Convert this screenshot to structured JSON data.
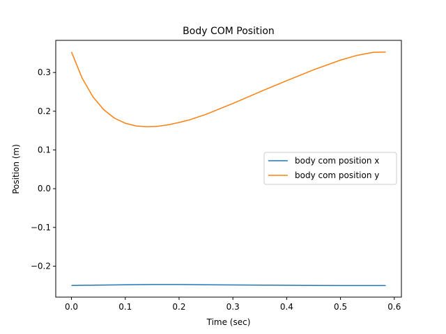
{
  "chart_data": {
    "type": "line",
    "title": "Body COM Position",
    "xlabel": "Time (sec)",
    "ylabel": "Position (m)",
    "xlim": [
      -0.0292,
      0.6132
    ],
    "ylim": [
      -0.28,
      0.383
    ],
    "xticks": [
      {
        "value": 0.0,
        "label": "0.0"
      },
      {
        "value": 0.1,
        "label": "0.1"
      },
      {
        "value": 0.2,
        "label": "0.2"
      },
      {
        "value": 0.3,
        "label": "0.3"
      },
      {
        "value": 0.4,
        "label": "0.4"
      },
      {
        "value": 0.5,
        "label": "0.5"
      },
      {
        "value": 0.6,
        "label": "0.6"
      }
    ],
    "yticks": [
      {
        "value": -0.2,
        "label": "−0.2"
      },
      {
        "value": -0.1,
        "label": "−0.1"
      },
      {
        "value": 0.0,
        "label": "0.0"
      },
      {
        "value": 0.1,
        "label": "0.1"
      },
      {
        "value": 0.2,
        "label": "0.2"
      },
      {
        "value": 0.3,
        "label": "0.3"
      }
    ],
    "grid": false,
    "legend_position": "center-right",
    "series": [
      {
        "name": "body com position x",
        "color": "#1f77b4",
        "x": [
          0.0,
          0.05,
          0.1,
          0.15,
          0.2,
          0.25,
          0.3,
          0.35,
          0.4,
          0.45,
          0.5,
          0.55,
          0.584
        ],
        "y": [
          -0.25,
          -0.249,
          -0.248,
          -0.2475,
          -0.2475,
          -0.248,
          -0.2485,
          -0.249,
          -0.2495,
          -0.25,
          -0.2502,
          -0.2502,
          -0.2502
        ]
      },
      {
        "name": "body com position y",
        "color": "#ff7f0e",
        "x": [
          0.0,
          0.02,
          0.04,
          0.06,
          0.08,
          0.1,
          0.12,
          0.14,
          0.16,
          0.18,
          0.2,
          0.22,
          0.25,
          0.3,
          0.35,
          0.4,
          0.45,
          0.5,
          0.53,
          0.56,
          0.584
        ],
        "y": [
          0.353,
          0.285,
          0.237,
          0.204,
          0.182,
          0.169,
          0.162,
          0.16,
          0.161,
          0.165,
          0.171,
          0.178,
          0.192,
          0.22,
          0.25,
          0.279,
          0.307,
          0.332,
          0.344,
          0.352,
          0.353
        ]
      }
    ]
  }
}
